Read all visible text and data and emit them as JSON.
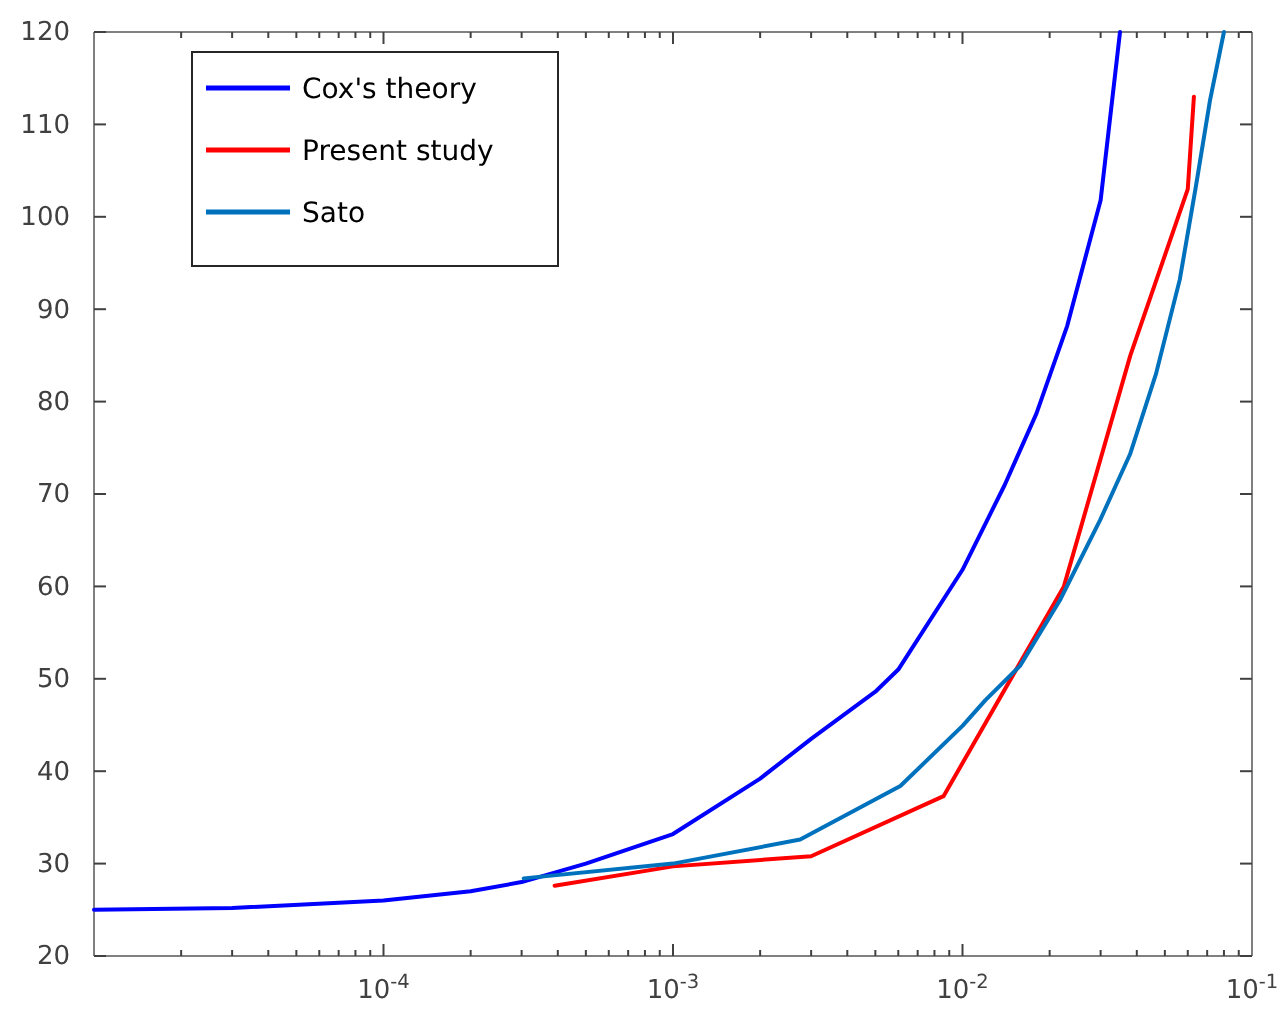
{
  "chart_data": {
    "type": "line",
    "log": "x",
    "legend": "top left",
    "grid": false,
    "xlim": [
      1e-05,
      0.1
    ],
    "ylim": [
      20,
      120
    ],
    "xticks": [
      {
        "value": 2e-05,
        "label": null
      },
      {
        "value": 3e-05,
        "label": null
      },
      {
        "value": 4e-05,
        "label": null
      },
      {
        "value": 5e-05,
        "label": null
      },
      {
        "value": 6e-05,
        "label": null
      },
      {
        "value": 7e-05,
        "label": null
      },
      {
        "value": 8e-05,
        "label": null
      },
      {
        "value": 9e-05,
        "label": null
      },
      {
        "value": 0.0001,
        "label": "10$^{-4}$"
      },
      {
        "value": 0.0002,
        "label": null
      },
      {
        "value": 0.0003,
        "label": null
      },
      {
        "value": 0.0004,
        "label": null
      },
      {
        "value": 0.0005,
        "label": null
      },
      {
        "value": 0.0006,
        "label": null
      },
      {
        "value": 0.0007,
        "label": null
      },
      {
        "value": 0.0008,
        "label": null
      },
      {
        "value": 0.0009,
        "label": null
      },
      {
        "value": 0.001,
        "label": "10$^{-3}$"
      },
      {
        "value": 0.002,
        "label": null
      },
      {
        "value": 0.003,
        "label": null
      },
      {
        "value": 0.004,
        "label": null
      },
      {
        "value": 0.005,
        "label": null
      },
      {
        "value": 0.006,
        "label": null
      },
      {
        "value": 0.007,
        "label": null
      },
      {
        "value": 0.008,
        "label": null
      },
      {
        "value": 0.009,
        "label": null
      },
      {
        "value": 0.01,
        "label": "10$^{-2}$"
      },
      {
        "value": 0.02,
        "label": null
      },
      {
        "value": 0.03,
        "label": null
      },
      {
        "value": 0.04,
        "label": null
      },
      {
        "value": 0.05,
        "label": null
      },
      {
        "value": 0.06,
        "label": null
      },
      {
        "value": 0.07,
        "label": null
      },
      {
        "value": 0.08,
        "label": null
      },
      {
        "value": 0.09,
        "label": null
      },
      {
        "value": 0.1,
        "label": "10$^{-1}$"
      }
    ],
    "yticks": [
      20,
      30,
      40,
      50,
      60,
      70,
      80,
      90,
      100,
      110,
      120
    ],
    "series": [
      {
        "name": "Cox's theory",
        "color": "#0000ff",
        "x": [
          1e-05,
          3e-05,
          0.0001,
          0.0002,
          0.0003,
          0.0005,
          0.001,
          0.002,
          0.003,
          0.005,
          0.006,
          0.01,
          0.014,
          0.018,
          0.023,
          0.03,
          0.035
        ],
        "values": [
          25,
          25.2,
          26,
          27,
          28,
          30,
          33.2,
          39.2,
          43.5,
          48.6,
          51,
          61.8,
          71,
          78.7,
          88.2,
          101.8,
          120
        ]
      },
      {
        "name": "Present study",
        "color": "#ff0000",
        "x": [
          0.00039,
          0.001,
          0.003,
          0.0086,
          0.0224,
          0.038,
          0.06,
          0.063
        ],
        "values": [
          27.6,
          29.7,
          30.8,
          37.3,
          60,
          85,
          103,
          113
        ]
      },
      {
        "name": "Sato",
        "color": "#0072bd",
        "x": [
          0.000305,
          0.001,
          0.00275,
          0.0061,
          0.01,
          0.012,
          0.0158,
          0.0217,
          0.0299,
          0.0379,
          0.0466,
          0.0563,
          0.064,
          0.0716,
          0.08
        ],
        "values": [
          28.4,
          30,
          32.6,
          38.4,
          44.9,
          47.7,
          51.4,
          58.5,
          67.2,
          74.3,
          83,
          93.2,
          103.3,
          112.6,
          120
        ]
      }
    ]
  }
}
